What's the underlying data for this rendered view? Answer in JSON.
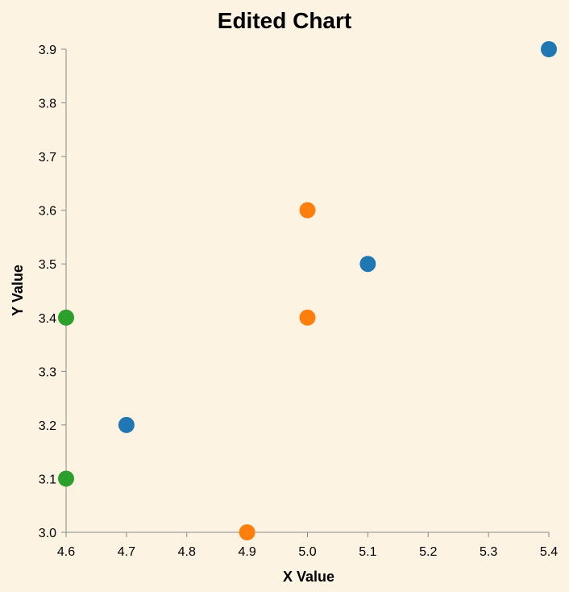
{
  "chart_data": {
    "type": "scatter",
    "title": "Edited Chart",
    "xlabel": "X Value",
    "ylabel": "Y Value",
    "xlim": [
      4.6,
      5.4
    ],
    "ylim": [
      3.0,
      3.9
    ],
    "x_ticks": [
      "4.6",
      "4.7",
      "4.8",
      "4.9",
      "5.0",
      "5.1",
      "5.2",
      "5.3",
      "5.4"
    ],
    "y_ticks": [
      "3.0",
      "3.1",
      "3.2",
      "3.3",
      "3.4",
      "3.5",
      "3.6",
      "3.7",
      "3.8",
      "3.9"
    ],
    "grid": false,
    "background_color": "#fdf3e3",
    "series": [
      {
        "color": "#1f77b4",
        "points": [
          {
            "x": 4.7,
            "y": 3.2
          },
          {
            "x": 5.1,
            "y": 3.5
          },
          {
            "x": 5.4,
            "y": 3.9
          }
        ]
      },
      {
        "color": "#ff7f0e",
        "points": [
          {
            "x": 4.9,
            "y": 3.0
          },
          {
            "x": 5.0,
            "y": 3.4
          },
          {
            "x": 5.0,
            "y": 3.6
          }
        ]
      },
      {
        "color": "#2ca02c",
        "points": [
          {
            "x": 4.6,
            "y": 3.1
          },
          {
            "x": 4.6,
            "y": 3.4
          }
        ]
      }
    ]
  }
}
